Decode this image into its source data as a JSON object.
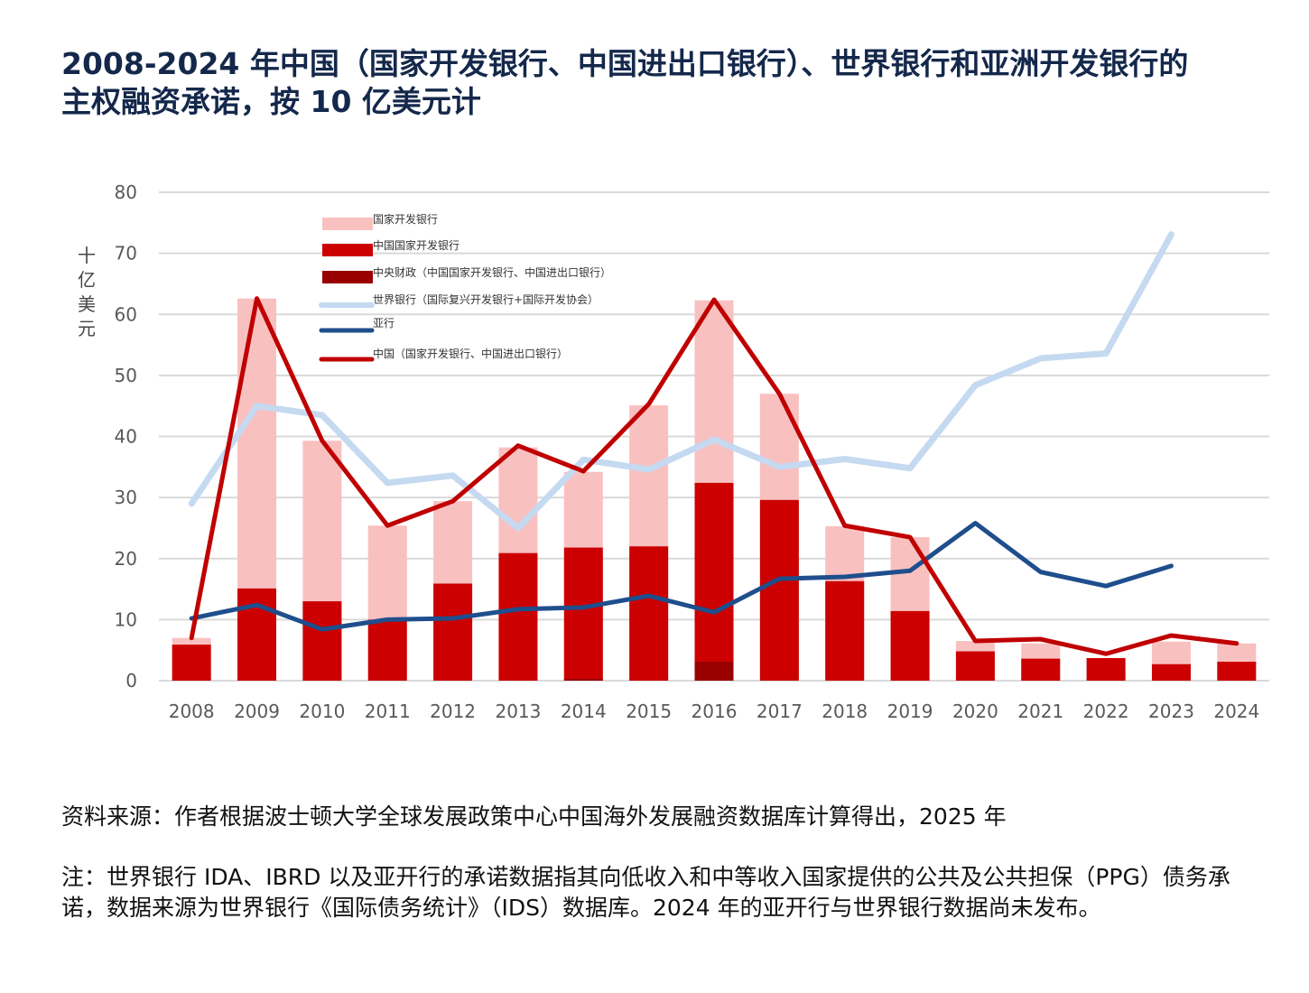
{
  "title": {
    "line1": "2008-2024 年中国（国家开发银行、中国进出口银行）、世界银行和亚洲开发银行的",
    "line2": "主权融资承诺，按 10 亿美元计"
  },
  "footer": {
    "source": "资料来源：作者根据波士顿大学全球发展政策中心中国海外发展融资数据库计算得出，2025 年",
    "note": "注：世界银行 IDA、IBRD 以及亚开行的承诺数据指其向低收入和中等收入国家提供的公共及公共担保（PPG）债务承诺，数据来源为世界银行《国际债务统计》（IDS）数据库。2024 年的亚开行与世界银行数据尚未发布。"
  },
  "chart_data": {
    "type": "bar",
    "title": "2008-2024 年中国（国家开发银行、中国进出口银行）、世界银行和亚洲开发银行的主权融资承诺，按 10 亿美元计",
    "xlabel": "",
    "ylabel": "十亿美元",
    "ylim": [
      0,
      80
    ],
    "yticks": [
      0,
      10,
      20,
      30,
      40,
      50,
      60,
      70,
      80
    ],
    "grid": true,
    "legend_position": "top-left",
    "categories": [
      "2008",
      "2009",
      "2010",
      "2011",
      "2012",
      "2013",
      "2014",
      "2015",
      "2016",
      "2017",
      "2018",
      "2019",
      "2020",
      "2021",
      "2022",
      "2023",
      "2024"
    ],
    "series": [
      {
        "name": "国家开发银行",
        "kind": "bar",
        "color": "#f9c0c0",
        "values": [
          7.0,
          62.6,
          39.3,
          25.4,
          29.4,
          38.2,
          34.2,
          45.1,
          62.3,
          47.0,
          25.3,
          23.5,
          6.5,
          6.1,
          3.7,
          6.4,
          6.1
        ]
      },
      {
        "name": "中国国家开发银行",
        "kind": "bar",
        "color": "#cc0000",
        "values": [
          5.9,
          15.1,
          13.0,
          10.0,
          15.9,
          20.9,
          21.8,
          22.0,
          32.4,
          29.6,
          16.3,
          11.4,
          4.8,
          3.6,
          3.7,
          2.7,
          3.1
        ]
      },
      {
        "name": "中央财政（中国国家开发银行、中国进出口银行）",
        "kind": "bar",
        "color": "#990000",
        "values": [
          0,
          0,
          0,
          0,
          0,
          0,
          0.3,
          0,
          3.1,
          0,
          0,
          0,
          0,
          0,
          0,
          0,
          0
        ]
      },
      {
        "name": "世界银行（国际复兴开发银行+国际开发协会）",
        "kind": "line",
        "color": "#c5d9f1",
        "values": [
          29.0,
          45.0,
          43.5,
          32.4,
          33.6,
          25.0,
          36.2,
          34.6,
          39.5,
          35.0,
          36.3,
          34.8,
          48.4,
          52.8,
          53.6,
          73.1,
          null
        ]
      },
      {
        "name": "亚行",
        "kind": "line",
        "color": "#1f4e8c",
        "values": [
          10.2,
          12.4,
          8.4,
          10.0,
          10.2,
          11.7,
          12.0,
          13.9,
          11.2,
          16.7,
          17.0,
          18.0,
          25.8,
          17.8,
          15.5,
          18.8,
          null
        ]
      },
      {
        "name": "中国（国家开发银行、中国进出口银行）",
        "kind": "line",
        "color": "#c00000",
        "values": [
          7.0,
          62.6,
          39.3,
          25.4,
          29.4,
          38.5,
          34.3,
          45.3,
          62.4,
          47.0,
          25.4,
          23.5,
          6.5,
          6.8,
          4.4,
          7.4,
          6.1
        ]
      }
    ]
  }
}
